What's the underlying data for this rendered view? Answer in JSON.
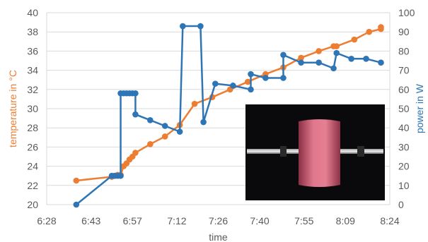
{
  "chart_data": {
    "type": "line",
    "xlabel": "time",
    "ylabel_left": "temperature in °C",
    "ylabel_right": "power in W",
    "x_range": [
      "6:28",
      "8:24"
    ],
    "x_ticks": [
      "6:28",
      "6:43",
      "6:57",
      "7:12",
      "7:26",
      "7:40",
      "7:55",
      "8:09",
      "8:24"
    ],
    "left_axis": {
      "min": 20,
      "max": 40,
      "ticks": [
        20,
        22,
        24,
        26,
        28,
        30,
        32,
        34,
        36,
        38,
        40
      ]
    },
    "right_axis": {
      "min": 0,
      "max": 100,
      "ticks": [
        0,
        10,
        20,
        30,
        40,
        50,
        60,
        70,
        80,
        90,
        100
      ]
    },
    "grid": "horizontal",
    "legend": "none",
    "inset_image": "photo of a glowing pink cylindrical sample on a rod (bottom-right)",
    "colors": {
      "temperature": "#ED7D31",
      "power": "#2E75B6",
      "grid": "#D9D9D9",
      "text": "#595959"
    },
    "series": [
      {
        "axis": "left",
        "color": "#ED7D31",
        "points": [
          [
            "6:38",
            22.5
          ],
          [
            "6:50",
            22.9
          ],
          [
            "6:51",
            23.0
          ],
          [
            "6:52",
            23.1
          ],
          [
            "6:53",
            23.1
          ],
          [
            "6:54",
            24.0
          ],
          [
            "6:55",
            24.3
          ],
          [
            "6:56",
            24.7
          ],
          [
            "6:57",
            25.0
          ],
          [
            "6:58",
            25.4
          ],
          [
            "7:03",
            26.3
          ],
          [
            "7:08",
            27.1
          ],
          [
            "7:13",
            28.3
          ],
          [
            "7:18",
            30.5
          ],
          [
            "7:24",
            31.2
          ],
          [
            "7:30",
            32.0
          ],
          [
            "7:36",
            32.8
          ],
          [
            "7:42",
            33.6
          ],
          [
            "7:48",
            34.3
          ],
          [
            "7:54",
            35.3
          ],
          [
            "8:00",
            36.0
          ],
          [
            "8:05",
            36.5
          ],
          [
            "8:06",
            36.5
          ],
          [
            "8:12",
            37.2
          ],
          [
            "8:17",
            38.0
          ],
          [
            "8:21",
            38.3
          ],
          [
            "8:21",
            38.5
          ]
        ]
      },
      {
        "axis": "right",
        "color": "#2E75B6",
        "points": [
          [
            "6:38",
            0
          ],
          [
            "6:50",
            15
          ],
          [
            "6:51",
            15
          ],
          [
            "6:52",
            15
          ],
          [
            "6:53",
            15
          ],
          [
            "6:53",
            58
          ],
          [
            "6:54",
            58
          ],
          [
            "6:55",
            58
          ],
          [
            "6:56",
            58
          ],
          [
            "6:57",
            58
          ],
          [
            "6:58",
            58
          ],
          [
            "6:58",
            47
          ],
          [
            "7:03",
            44
          ],
          [
            "7:08",
            41
          ],
          [
            "7:13",
            38
          ],
          [
            "7:14",
            93
          ],
          [
            "7:20",
            93
          ],
          [
            "7:21",
            43
          ],
          [
            "7:25",
            63
          ],
          [
            "7:31",
            62
          ],
          [
            "7:37",
            60
          ],
          [
            "7:37",
            68
          ],
          [
            "7:42",
            66
          ],
          [
            "7:48",
            66
          ],
          [
            "7:48",
            78
          ],
          [
            "7:54",
            74
          ],
          [
            "8:00",
            74
          ],
          [
            "8:05",
            71
          ],
          [
            "8:06",
            79
          ],
          [
            "8:11",
            76
          ],
          [
            "8:16",
            76
          ],
          [
            "8:21",
            74
          ]
        ]
      }
    ]
  }
}
